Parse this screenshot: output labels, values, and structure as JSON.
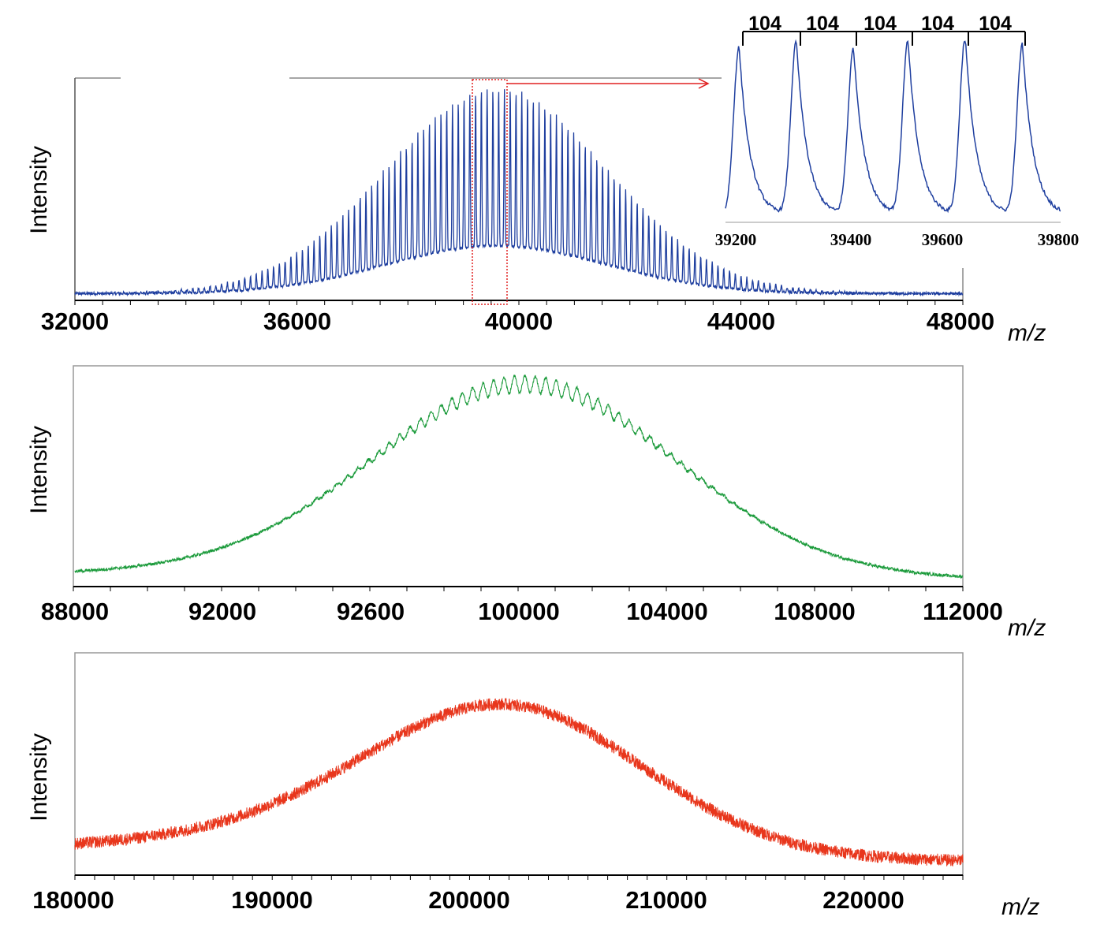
{
  "chart_data": [
    {
      "id": "panel1",
      "type": "line",
      "color": "#1f3f9f",
      "ylabel": "Intensity",
      "xunit": "m/z",
      "xlim": [
        32000,
        48000
      ],
      "xticks": [
        "32000",
        "36000",
        "40000",
        "44000",
        "48000"
      ],
      "series": [
        {
          "peak_spacing": 104,
          "envelope_center": 39600,
          "envelope_sigma": 2000,
          "peak_max": 0.95,
          "baseline": 0.02,
          "x": [
            32000,
            34000,
            36000,
            38000,
            39600,
            42000,
            44000,
            46000,
            48000
          ],
          "y": [
            0.02,
            0.06,
            0.32,
            0.78,
            0.95,
            0.66,
            0.2,
            0.04,
            0.02
          ]
        }
      ],
      "zoom_region": [
        39200,
        39800
      ],
      "inset": {
        "xlim": [
          39200,
          39800
        ],
        "xticks": [
          "39200",
          "39400",
          "39600",
          "39800"
        ],
        "peaks": [
          39220,
          39325,
          39430,
          39530,
          39635,
          39740
        ],
        "peak_heights": [
          0.95,
          0.98,
          0.94,
          0.98,
          1.0,
          0.96
        ],
        "spacing_labels": [
          "104",
          "104",
          "104",
          "104",
          "104"
        ]
      }
    },
    {
      "id": "panel2",
      "type": "line",
      "color": "#1a9a3a",
      "ylabel": "Intensity",
      "xunit": "m/z",
      "xlim": [
        88000,
        112000
      ],
      "xticks": [
        "88000",
        "92000",
        "92600",
        "100000",
        "104000",
        "108000",
        "112000"
      ],
      "series": [
        {
          "envelope_center": 100200,
          "envelope_sigma": 4000,
          "peak_max": 0.95,
          "baseline": 0.02,
          "x": [
            88000,
            92000,
            96000,
            100200,
            104000,
            108000,
            112000
          ],
          "y": [
            0.03,
            0.1,
            0.5,
            0.95,
            0.6,
            0.1,
            0.02
          ]
        }
      ]
    },
    {
      "id": "panel3",
      "type": "line",
      "color": "#e8361c",
      "ylabel": "Intensity",
      "xunit": "m/z",
      "xlim": [
        180000,
        225000
      ],
      "xticks": [
        "180000",
        "190000",
        "200000",
        "210000",
        "220000"
      ],
      "series": [
        {
          "envelope_center": 201500,
          "envelope_sigma": 7000,
          "peak_max": 0.82,
          "baseline": 0.1,
          "x": [
            180000,
            190000,
            196000,
            201500,
            206000,
            212000,
            225000
          ],
          "y": [
            0.12,
            0.25,
            0.55,
            0.82,
            0.65,
            0.25,
            0.06
          ]
        }
      ]
    }
  ]
}
